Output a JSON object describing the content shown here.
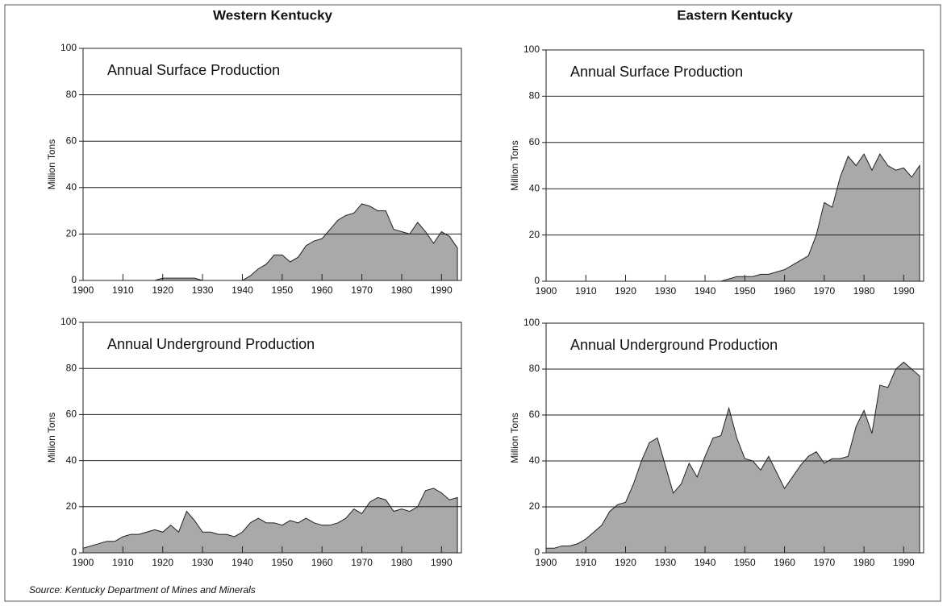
{
  "column_titles": [
    "Western Kentucky",
    "Eastern Kentucky"
  ],
  "source": "Source: Kentucky Department of Mines and Minerals",
  "chart_data": [
    {
      "type": "area",
      "title": "Annual Surface Production",
      "ylabel": "Million Tons",
      "color": "#a9a9a9",
      "x": [
        1900,
        1902,
        1904,
        1906,
        1908,
        1910,
        1912,
        1914,
        1916,
        1918,
        1920,
        1922,
        1924,
        1926,
        1928,
        1930,
        1932,
        1934,
        1936,
        1938,
        1940,
        1942,
        1944,
        1946,
        1948,
        1950,
        1952,
        1954,
        1956,
        1958,
        1960,
        1962,
        1964,
        1966,
        1968,
        1970,
        1972,
        1974,
        1976,
        1978,
        1980,
        1982,
        1984,
        1986,
        1988,
        1990,
        1992,
        1994
      ],
      "values": [
        0,
        0,
        0,
        0,
        0,
        0,
        0,
        0,
        0,
        0,
        1,
        1,
        1,
        1,
        1,
        0,
        0,
        0,
        0,
        0,
        0,
        2,
        5,
        7,
        11,
        11,
        8,
        10,
        15,
        17,
        18,
        22,
        26,
        28,
        29,
        33,
        32,
        30,
        30,
        22,
        21,
        20,
        25,
        21,
        16,
        21,
        19,
        14
      ],
      "xlim": [
        1900,
        1995
      ],
      "xticks": [
        1900,
        1910,
        1920,
        1930,
        1940,
        1950,
        1960,
        1970,
        1980,
        1990
      ],
      "ylim": [
        0,
        100
      ],
      "yticks": [
        0,
        20,
        40,
        60,
        80,
        100
      ],
      "grid": true
    },
    {
      "type": "area",
      "title": "Annual Surface Production",
      "ylabel": "Million Tons",
      "color": "#a9a9a9",
      "x": [
        1900,
        1902,
        1904,
        1906,
        1908,
        1910,
        1912,
        1914,
        1916,
        1918,
        1920,
        1922,
        1924,
        1926,
        1928,
        1930,
        1932,
        1934,
        1936,
        1938,
        1940,
        1942,
        1944,
        1946,
        1948,
        1950,
        1952,
        1954,
        1956,
        1958,
        1960,
        1962,
        1964,
        1966,
        1968,
        1970,
        1972,
        1974,
        1976,
        1978,
        1980,
        1982,
        1984,
        1986,
        1988,
        1990,
        1992,
        1994
      ],
      "values": [
        0,
        0,
        0,
        0,
        0,
        0,
        0,
        0,
        0,
        0,
        0,
        0,
        0,
        0,
        0,
        0,
        0,
        0,
        0,
        0,
        0,
        0,
        0,
        1,
        2,
        2,
        2,
        3,
        3,
        4,
        5,
        7,
        9,
        11,
        20,
        34,
        32,
        45,
        54,
        50,
        55,
        48,
        55,
        50,
        48,
        49,
        45,
        50
      ],
      "xlim": [
        1900,
        1995
      ],
      "xticks": [
        1900,
        1910,
        1920,
        1930,
        1940,
        1950,
        1960,
        1970,
        1980,
        1990
      ],
      "ylim": [
        0,
        100
      ],
      "yticks": [
        0,
        20,
        40,
        60,
        80,
        100
      ],
      "grid": true
    },
    {
      "type": "area",
      "title": "Annual Underground Production",
      "ylabel": "Million Tons",
      "color": "#a9a9a9",
      "x": [
        1900,
        1902,
        1904,
        1906,
        1908,
        1910,
        1912,
        1914,
        1916,
        1918,
        1920,
        1922,
        1924,
        1926,
        1928,
        1930,
        1932,
        1934,
        1936,
        1938,
        1940,
        1942,
        1944,
        1946,
        1948,
        1950,
        1952,
        1954,
        1956,
        1958,
        1960,
        1962,
        1964,
        1966,
        1968,
        1970,
        1972,
        1974,
        1976,
        1978,
        1980,
        1982,
        1984,
        1986,
        1988,
        1990,
        1992,
        1994
      ],
      "values": [
        2,
        3,
        4,
        5,
        5,
        7,
        8,
        8,
        9,
        10,
        9,
        12,
        9,
        18,
        14,
        9,
        9,
        8,
        8,
        7,
        9,
        13,
        15,
        13,
        13,
        12,
        14,
        13,
        15,
        13,
        12,
        12,
        13,
        15,
        19,
        17,
        22,
        24,
        23,
        18,
        19,
        18,
        20,
        27,
        28,
        26,
        23,
        24
      ],
      "xlim": [
        1900,
        1995
      ],
      "xticks": [
        1900,
        1910,
        1920,
        1930,
        1940,
        1950,
        1960,
        1970,
        1980,
        1990
      ],
      "ylim": [
        0,
        100
      ],
      "yticks": [
        0,
        20,
        40,
        60,
        80,
        100
      ],
      "grid": true
    },
    {
      "type": "area",
      "title": "Annual Underground Production",
      "ylabel": "Million Tons",
      "color": "#a9a9a9",
      "x": [
        1900,
        1902,
        1904,
        1906,
        1908,
        1910,
        1912,
        1914,
        1916,
        1918,
        1920,
        1922,
        1924,
        1926,
        1928,
        1930,
        1932,
        1934,
        1936,
        1938,
        1940,
        1942,
        1944,
        1946,
        1948,
        1950,
        1952,
        1954,
        1956,
        1958,
        1960,
        1962,
        1964,
        1966,
        1968,
        1970,
        1972,
        1974,
        1976,
        1978,
        1980,
        1982,
        1984,
        1986,
        1988,
        1990,
        1992,
        1994
      ],
      "values": [
        2,
        2,
        3,
        3,
        4,
        6,
        9,
        12,
        18,
        21,
        22,
        30,
        40,
        48,
        50,
        38,
        26,
        30,
        39,
        33,
        42,
        50,
        51,
        63,
        50,
        41,
        40,
        36,
        42,
        35,
        28,
        33,
        38,
        42,
        44,
        39,
        41,
        41,
        42,
        55,
        62,
        52,
        73,
        72,
        80,
        83,
        80,
        77
      ],
      "xlim": [
        1900,
        1995
      ],
      "xticks": [
        1900,
        1910,
        1920,
        1930,
        1940,
        1950,
        1960,
        1970,
        1980,
        1990
      ],
      "ylim": [
        0,
        100
      ],
      "yticks": [
        0,
        20,
        40,
        60,
        80,
        100
      ],
      "grid": true
    }
  ]
}
